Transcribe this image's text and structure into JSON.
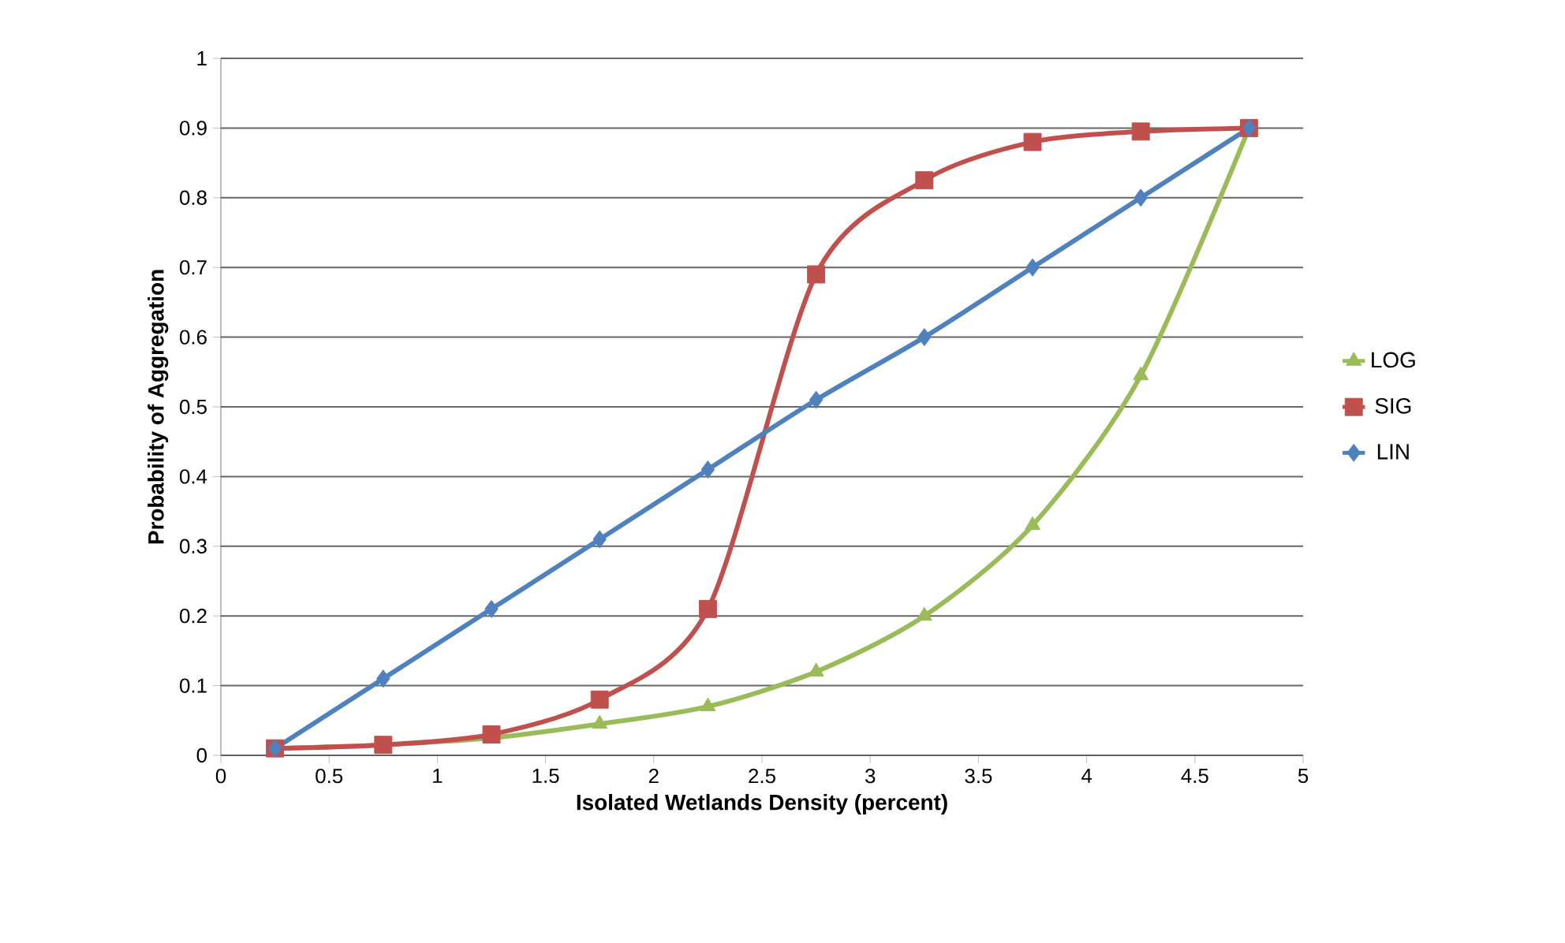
{
  "chart_data": {
    "type": "line",
    "xlabel": "Isolated Wetlands Density (percent)",
    "ylabel": "Probability of Aggregation",
    "x": [
      0.25,
      0.75,
      1.25,
      1.75,
      2.25,
      2.75,
      3.25,
      3.75,
      4.25,
      4.75
    ],
    "series": [
      {
        "name": "LOG",
        "color": "#9bbb59",
        "marker": "triangle",
        "values": [
          0.01,
          0.015,
          0.025,
          0.045,
          0.07,
          0.12,
          0.2,
          0.33,
          0.545,
          0.9
        ]
      },
      {
        "name": "SIG",
        "color": "#c0504d",
        "marker": "square",
        "values": [
          0.01,
          0.015,
          0.03,
          0.08,
          0.21,
          0.69,
          0.825,
          0.88,
          0.895,
          0.9
        ]
      },
      {
        "name": "LIN",
        "color": "#4f81bd",
        "marker": "diamond",
        "values": [
          0.01,
          0.11,
          0.21,
          0.31,
          0.41,
          0.51,
          0.6,
          0.7,
          0.8,
          0.9
        ]
      }
    ],
    "xlim": [
      0,
      5
    ],
    "xticks": [
      0,
      0.5,
      1,
      1.5,
      2,
      2.5,
      3,
      3.5,
      4,
      4.5,
      5
    ],
    "ylim": [
      0,
      1
    ],
    "yticks": [
      0,
      0.1,
      0.2,
      0.3,
      0.4,
      0.5,
      0.6,
      0.7,
      0.8,
      0.9,
      1
    ],
    "grid": "y",
    "legend": "right",
    "line_style": "solid"
  }
}
